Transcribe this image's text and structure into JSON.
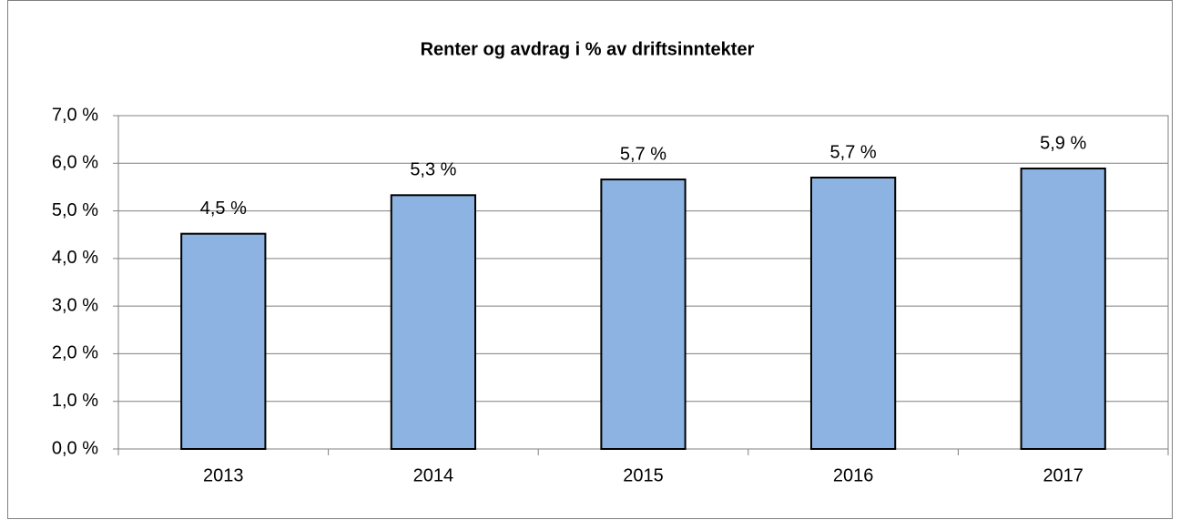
{
  "chart_data": {
    "type": "bar",
    "title": "Renter og avdrag i % av driftsinntekter",
    "categories": [
      "2013",
      "2014",
      "2015",
      "2016",
      "2017"
    ],
    "values": [
      4.52,
      5.33,
      5.66,
      5.7,
      5.89
    ],
    "value_labels": [
      "4,5 %",
      "5,3 %",
      "5,7 %",
      "5,7 %",
      "5,9 %"
    ],
    "color": "#8db3e2",
    "ylim": [
      0,
      7
    ],
    "yticks": [
      {
        "value": 0,
        "label": "0,0 %"
      },
      {
        "value": 1,
        "label": "1,0 %"
      },
      {
        "value": 2,
        "label": "2,0 %"
      },
      {
        "value": 3,
        "label": "3,0 %"
      },
      {
        "value": 4,
        "label": "4,0 %"
      },
      {
        "value": 5,
        "label": "5,0 %"
      },
      {
        "value": 6,
        "label": "6,0 %"
      },
      {
        "value": 7,
        "label": "7,0 %"
      }
    ],
    "grid": true
  }
}
